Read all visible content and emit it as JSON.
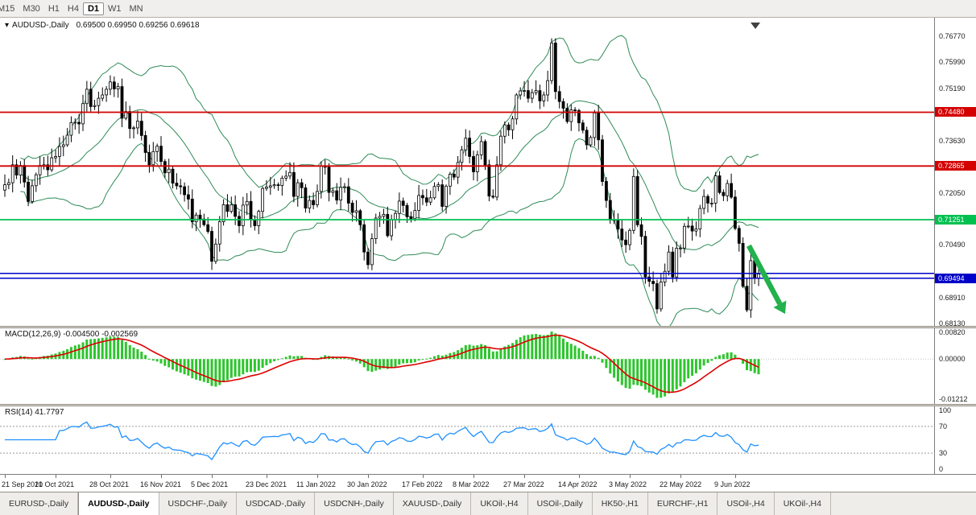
{
  "icons": {
    "title_marker": "▾"
  },
  "toolbar": {
    "timeframes": [
      {
        "label": "M15",
        "active": false
      },
      {
        "label": "M30",
        "active": false
      },
      {
        "label": "H1",
        "active": false
      },
      {
        "label": "H4",
        "active": false
      },
      {
        "label": "D1",
        "active": true
      },
      {
        "label": "W1",
        "active": false
      },
      {
        "label": "MN",
        "active": false
      }
    ]
  },
  "tabs": [
    {
      "label": "EURUSD-,Daily",
      "active": false
    },
    {
      "label": "AUDUSD-,Daily",
      "active": true
    },
    {
      "label": "USDCHF-,Daily",
      "active": false
    },
    {
      "label": "USDCAD-,Daily",
      "active": false
    },
    {
      "label": "USDCNH-,Daily",
      "active": false
    },
    {
      "label": "XAUUSD-,Daily",
      "active": false
    },
    {
      "label": "UKOil-,H4",
      "active": false
    },
    {
      "label": "USOil-,Daily",
      "active": false
    },
    {
      "label": "HK50-,H1",
      "active": false
    },
    {
      "label": "EURCHF-,H1",
      "active": false
    },
    {
      "label": "USOil-,H4",
      "active": false
    },
    {
      "label": "UKOil-,H4",
      "active": false
    }
  ],
  "chart_data": [
    {
      "type": "candlestick",
      "symbol": "AUDUSD-,Daily",
      "ohlc_text": "0.69500 0.69950 0.69256 0.69618",
      "last_candle": {
        "open": 0.695,
        "high": 0.6995,
        "low": 0.69256,
        "close": 0.69618
      },
      "ylim": [
        0.6806,
        0.7732
      ],
      "y_ticks": [
        {
          "text": "0.76770",
          "value": 0.7677
        },
        {
          "text": "0.75990",
          "value": 0.7599
        },
        {
          "text": "0.75190",
          "value": 0.7519
        },
        {
          "text": "0.73630",
          "value": 0.7363
        },
        {
          "text": "0.72050",
          "value": 0.7205
        },
        {
          "text": "0.70490",
          "value": 0.7049
        },
        {
          "text": "0.68910",
          "value": 0.6891
        },
        {
          "text": "0.68130",
          "value": 0.6813
        }
      ],
      "hlines": [
        {
          "price": 0.7448,
          "label": "0.74480",
          "color": "#D40000",
          "width": 1.8
        },
        {
          "price": 0.72865,
          "label": "0.72865",
          "color": "#D40000",
          "width": 1.8
        },
        {
          "price": 0.71251,
          "label": "0.71251",
          "color": "#00C050",
          "width": 1.8
        },
        {
          "price": 0.6964,
          "label": null,
          "color": "#0000C8",
          "width": 1.5
        },
        {
          "price": 0.69494,
          "label": "0.69494",
          "color": "#0000C8",
          "width": 1.5
        }
      ],
      "x_labels": [
        {
          "text": "21 Sep 2021",
          "i": 0
        },
        {
          "text": "10 Oct 2021",
          "i": 13
        },
        {
          "text": "28 Oct 2021",
          "i": 27
        },
        {
          "text": "16 Nov 2021",
          "i": 40
        },
        {
          "text": "5 Dec 2021",
          "i": 53
        },
        {
          "text": "23 Dec 2021",
          "i": 67
        },
        {
          "text": "11 Jan 2022",
          "i": 80
        },
        {
          "text": "30 Jan 2022",
          "i": 93
        },
        {
          "text": "17 Feb 2022",
          "i": 107
        },
        {
          "text": "8 Mar 2022",
          "i": 120
        },
        {
          "text": "27 Mar 2022",
          "i": 133
        },
        {
          "text": "14 Apr 2022",
          "i": 147
        },
        {
          "text": "3 May 2022",
          "i": 160
        },
        {
          "text": "22 May 2022",
          "i": 173
        },
        {
          "text": "9 Jun 2022",
          "i": 187
        }
      ],
      "closes": [
        0.723,
        0.7236,
        0.729,
        0.7259,
        0.7288,
        0.7238,
        0.718,
        0.7227,
        0.726,
        0.7288,
        0.729,
        0.7275,
        0.7311,
        0.7315,
        0.7345,
        0.735,
        0.7379,
        0.7417,
        0.7418,
        0.7413,
        0.7474,
        0.7517,
        0.7465,
        0.7468,
        0.749,
        0.75,
        0.7517,
        0.7539,
        0.7518,
        0.7525,
        0.743,
        0.745,
        0.7399,
        0.7401,
        0.7421,
        0.7378,
        0.7327,
        0.729,
        0.733,
        0.7346,
        0.73,
        0.7266,
        0.7277,
        0.7235,
        0.7227,
        0.7224,
        0.72,
        0.7187,
        0.7119,
        0.7139,
        0.7127,
        0.711,
        0.709,
        0.7,
        0.7052,
        0.7119,
        0.717,
        0.715,
        0.717,
        0.7135,
        0.7107,
        0.7169,
        0.718,
        0.7125,
        0.7107,
        0.715,
        0.7219,
        0.7223,
        0.7227,
        0.723,
        0.7228,
        0.725,
        0.7256,
        0.7267,
        0.7195,
        0.7236,
        0.7221,
        0.716,
        0.7183,
        0.717,
        0.721,
        0.7287,
        0.7283,
        0.7207,
        0.7212,
        0.7184,
        0.7222,
        0.7224,
        0.7175,
        0.7147,
        0.7152,
        0.711,
        0.7028,
        0.699,
        0.7068,
        0.713,
        0.7135,
        0.7141,
        0.7077,
        0.7125,
        0.7144,
        0.7181,
        0.7168,
        0.7134,
        0.7128,
        0.7153,
        0.7198,
        0.7191,
        0.7178,
        0.7191,
        0.7225,
        0.723,
        0.7165,
        0.7226,
        0.7262,
        0.7253,
        0.7297,
        0.7335,
        0.737,
        0.7315,
        0.7269,
        0.732,
        0.736,
        0.729,
        0.7196,
        0.7193,
        0.729,
        0.7376,
        0.741,
        0.7395,
        0.7428,
        0.75,
        0.7512,
        0.7513,
        0.749,
        0.7507,
        0.7513,
        0.7482,
        0.75,
        0.7543,
        0.7656,
        0.751,
        0.748,
        0.746,
        0.742,
        0.7455,
        0.7453,
        0.7416,
        0.7394,
        0.735,
        0.7372,
        0.7446,
        0.7365,
        0.724,
        0.7183,
        0.7124,
        0.7125,
        0.7097,
        0.7064,
        0.705,
        0.7093,
        0.7255,
        0.711,
        0.7075,
        0.6953,
        0.694,
        0.6933,
        0.6857,
        0.6938,
        0.697,
        0.7028,
        0.6953,
        0.7039,
        0.704,
        0.7105,
        0.7106,
        0.7091,
        0.7097,
        0.7159,
        0.7195,
        0.7175,
        0.7175,
        0.7257,
        0.7207,
        0.7197,
        0.7234,
        0.7193,
        0.7099,
        0.7054,
        0.6925,
        0.6854,
        0.7002,
        0.695,
        0.6962
      ],
      "bollinger": {
        "period": 20,
        "deviation": 2,
        "color": "#2E8B57"
      },
      "candle_colors": {
        "up": "#FFFFFF",
        "down": "#000000",
        "outline": "#000000"
      },
      "arrow": {
        "i1": 190.5,
        "p1": 0.7047,
        "i2": 199.8,
        "p2": 0.6842,
        "color": "#22B14C"
      },
      "shift_marker_color": "#404040"
    },
    {
      "type": "macd",
      "label": "MACD(12,26,9) -0.004500 -0.002569",
      "params": [
        12,
        26,
        9
      ],
      "current_values": [
        -0.0045,
        -0.002569
      ],
      "ylim": [
        -0.0136,
        0.0093
      ],
      "y_ticks": [
        {
          "text": "0.00820",
          "value": 0.0082
        },
        {
          "text": "0.00000",
          "value": 0.0
        },
        {
          "text": "-0.01212",
          "value": -0.01212
        }
      ],
      "histogram_color": "#2DC52D",
      "signal_color": "#DD0000"
    },
    {
      "type": "rsi",
      "label": "RSI(14) 41.7797",
      "period": 14,
      "current_value": 41.7797,
      "ylim": [
        0,
        100
      ],
      "levels": [
        70,
        30
      ],
      "y_ticks": [
        {
          "text": "100",
          "value": 100
        },
        {
          "text": "70",
          "value": 70
        },
        {
          "text": "30",
          "value": 30
        },
        {
          "text": "0",
          "value": 0
        }
      ],
      "line_color": "#1E90FF"
    }
  ]
}
